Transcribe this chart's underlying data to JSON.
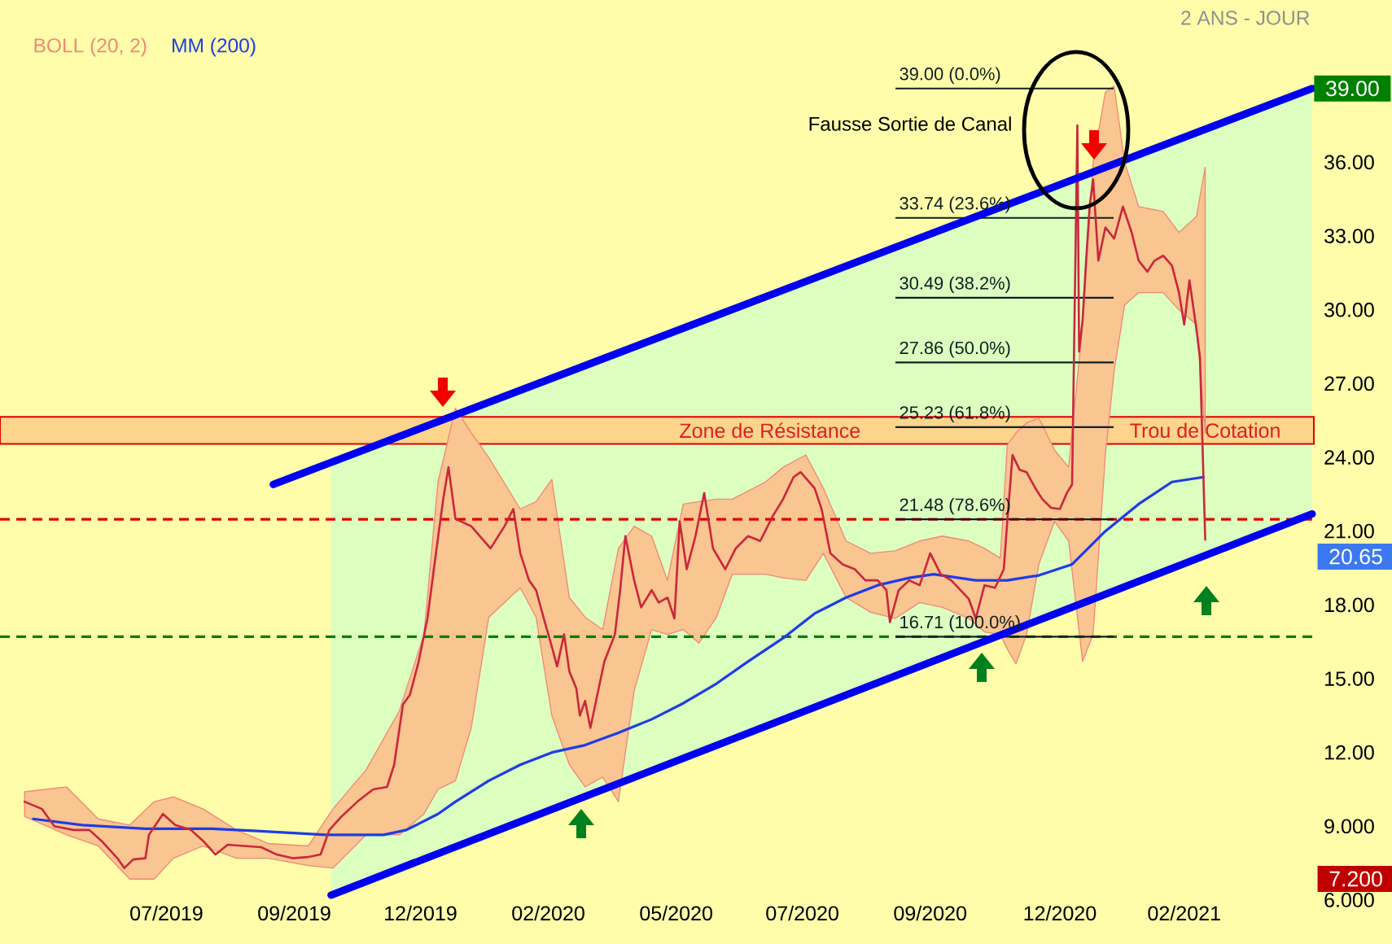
{
  "chart_data": {
    "type": "line",
    "subtitle": "2 ANS - JOUR",
    "xlim": [
      "2019-03-28",
      "2021-04-16"
    ],
    "ylim": [
      6,
      42.6
    ],
    "xticks": [
      {
        "value": "2019-07-01",
        "label": "07/2019"
      },
      {
        "value": "2019-09-12",
        "label": "09/2019"
      },
      {
        "value": "2019-11-23",
        "label": "12/2019"
      },
      {
        "value": "2020-02-04",
        "label": "02/2020"
      },
      {
        "value": "2020-04-17",
        "label": "05/2020"
      },
      {
        "value": "2020-06-28",
        "label": "07/2020"
      },
      {
        "value": "2020-09-09",
        "label": "09/2020"
      },
      {
        "value": "2020-11-22",
        "label": "12/2020"
      },
      {
        "value": "2021-02-01",
        "label": "02/2021"
      }
    ],
    "yticks": [
      {
        "value": 6,
        "label": "6.000"
      },
      {
        "value": 9,
        "label": "9.000"
      },
      {
        "value": 12,
        "label": "12.00"
      },
      {
        "value": 15,
        "label": "15.00"
      },
      {
        "value": 18,
        "label": "18.00"
      },
      {
        "value": 21,
        "label": "21.00"
      },
      {
        "value": 24,
        "label": "24.00"
      },
      {
        "value": 27,
        "label": "27.00"
      },
      {
        "value": 30,
        "label": "30.00"
      },
      {
        "value": 33,
        "label": "33.00"
      },
      {
        "value": 36,
        "label": "36.00"
      }
    ],
    "legend": "top left",
    "series": [
      {
        "name": "BOLL (20, 2)",
        "color": "#f08878",
        "values": [
          null,
          null,
          null,
          null,
          null,
          null,
          null,
          null,
          null,
          null,
          null,
          null,
          null,
          null,
          null,
          null,
          null,
          null,
          null,
          null,
          null,
          null,
          null,
          null,
          null,
          null,
          null,
          null,
          null,
          null,
          null,
          null,
          null,
          null,
          null,
          null,
          null,
          null,
          null,
          null,
          null,
          null,
          null,
          null,
          null,
          null,
          null,
          null,
          null,
          null,
          null,
          null,
          null,
          null,
          null,
          null,
          null,
          null,
          null,
          null
        ],
        "x": [
          "2019-04-11",
          "2019-05-05",
          "2019-05-23",
          "2019-06-10",
          "2019-06-24",
          "2019-07-05",
          "2019-07-22",
          "2019-08-10",
          "2019-08-28",
          "2019-09-20",
          "2019-10-04",
          "2019-10-23",
          "2019-11-11",
          "2019-11-25",
          "2019-12-03",
          "2019-12-13",
          "2019-12-22",
          "2020-01-01",
          "2020-01-19",
          "2020-01-28",
          "2020-02-06",
          "2020-02-16",
          "2020-02-25",
          "2020-03-06",
          "2020-03-15",
          "2020-03-24",
          "2020-04-03",
          "2020-04-12",
          "2020-04-21",
          "2020-04-30",
          "2020-05-10",
          "2020-05-19",
          "2020-06-07",
          "2020-06-17",
          "2020-06-30",
          "2020-07-10",
          "2020-07-23",
          "2020-08-06",
          "2020-08-20",
          "2020-09-03",
          "2020-09-16",
          "2020-10-01",
          "2020-10-10",
          "2020-10-19",
          "2020-10-23",
          "2020-10-28",
          "2020-11-03",
          "2020-11-10",
          "2020-11-19",
          "2020-11-27",
          "2020-12-05",
          "2020-12-11",
          "2020-12-18",
          "2020-12-23",
          "2020-12-29",
          "2021-01-06",
          "2021-01-20",
          "2021-01-29",
          "2021-02-08",
          "2021-02-13"
        ],
        "lower": [
          9.4,
          8.65,
          8.2,
          6.85,
          6.85,
          7.7,
          8.2,
          7.7,
          7.7,
          7.4,
          7.3,
          8.65,
          8.65,
          9.5,
          10.5,
          10.85,
          13.0,
          17.5,
          18.7,
          17.5,
          13.5,
          11.5,
          10.6,
          11.0,
          10.0,
          14.5,
          17.0,
          16.8,
          17.0,
          16.45,
          17.5,
          19.25,
          19.25,
          19.1,
          19.0,
          20.1,
          18.3,
          17.7,
          17.45,
          18.1,
          17.9,
          17.45,
          16.9,
          16.8,
          16.2,
          15.6,
          16.8,
          19.65,
          21.4,
          20.6,
          15.7,
          16.8,
          24.1,
          27.5,
          30.2,
          30.7,
          30.7,
          30.0,
          29.4,
          25.0
        ],
        "upper": [
          10.4,
          10.6,
          9.3,
          9.05,
          10.0,
          10.2,
          9.7,
          8.85,
          8.3,
          8.2,
          9.7,
          11.3,
          13.7,
          16.8,
          23.0,
          26.0,
          25.0,
          24.0,
          21.9,
          22.2,
          23.1,
          18.3,
          17.5,
          17.0,
          20.3,
          21.2,
          20.8,
          19.0,
          22.1,
          22.2,
          22.3,
          22.3,
          23.0,
          23.6,
          24.1,
          22.75,
          20.6,
          20.1,
          20.2,
          20.6,
          20.8,
          20.6,
          20.3,
          19.9,
          24.5,
          25.0,
          25.4,
          25.6,
          24.3,
          23.6,
          29.4,
          36.0,
          38.85,
          39.1,
          36.0,
          34.2,
          34.0,
          33.15,
          33.8,
          35.8
        ]
      },
      {
        "name": "MM (200)",
        "color": "#1e3ce6",
        "x": [
          "2019-04-16",
          "2019-05-14",
          "2019-06-19",
          "2019-07-27",
          "2019-08-24",
          "2019-09-30",
          "2019-11-02",
          "2019-11-15",
          "2019-12-03",
          "2019-12-13",
          "2020-01-01",
          "2020-01-19",
          "2020-02-06",
          "2020-02-25",
          "2020-03-15",
          "2020-04-03",
          "2020-04-21",
          "2020-05-10",
          "2020-05-28",
          "2020-06-17",
          "2020-07-05",
          "2020-07-23",
          "2020-08-10",
          "2020-08-28",
          "2020-09-11",
          "2020-10-05",
          "2020-10-23",
          "2020-11-10",
          "2020-11-29",
          "2020-12-18",
          "2021-01-06",
          "2021-01-25",
          "2021-02-12"
        ],
        "values": [
          9.3,
          9.05,
          8.9,
          8.9,
          8.8,
          8.65,
          8.65,
          8.85,
          9.5,
          10.0,
          10.85,
          11.5,
          12.0,
          12.3,
          12.8,
          13.35,
          14.0,
          14.8,
          15.7,
          16.65,
          17.65,
          18.3,
          18.8,
          19.1,
          19.25,
          19.0,
          19.0,
          19.2,
          19.65,
          21.0,
          22.1,
          23.0,
          23.2
        ]
      },
      {
        "color": "#c8283c",
        "x": [
          "2019-04-11",
          "2019-04-21",
          "2019-04-28",
          "2019-05-09",
          "2019-05-18",
          "2019-05-25",
          "2019-06-03",
          "2019-06-07",
          "2019-06-12",
          "2019-06-19",
          "2019-06-21",
          "2019-06-29",
          "2019-07-06",
          "2019-07-15",
          "2019-07-22",
          "2019-07-29",
          "2019-08-05",
          "2019-08-14",
          "2019-08-24",
          "2019-09-02",
          "2019-09-11",
          "2019-09-20",
          "2019-09-27",
          "2019-10-02",
          "2019-10-09",
          "2019-10-18",
          "2019-10-27",
          "2019-11-04",
          "2019-11-08",
          "2019-11-13",
          "2019-11-17",
          "2019-11-22",
          "2019-11-27",
          "2019-12-01",
          "2019-12-06",
          "2019-12-09",
          "2019-12-13",
          "2019-12-22",
          "2020-01-02",
          "2020-01-10",
          "2020-01-15",
          "2020-01-19",
          "2020-01-24",
          "2020-01-28",
          "2020-02-02",
          "2020-02-06",
          "2020-02-09",
          "2020-02-13",
          "2020-02-16",
          "2020-02-20",
          "2020-02-22",
          "2020-02-25",
          "2020-02-28",
          "2020-03-03",
          "2020-03-07",
          "2020-03-13",
          "2020-03-16",
          "2020-03-19",
          "2020-03-24",
          "2020-03-28",
          "2020-04-03",
          "2020-04-07",
          "2020-04-12",
          "2020-04-16",
          "2020-04-19",
          "2020-04-23",
          "2020-04-28",
          "2020-05-03",
          "2020-05-08",
          "2020-05-15",
          "2020-05-21",
          "2020-05-28",
          "2020-06-04",
          "2020-06-11",
          "2020-06-17",
          "2020-06-23",
          "2020-06-27",
          "2020-07-05",
          "2020-07-09",
          "2020-07-14",
          "2020-07-21",
          "2020-07-28",
          "2020-08-03",
          "2020-08-10",
          "2020-08-15",
          "2020-08-17",
          "2020-08-22",
          "2020-08-28",
          "2020-09-03",
          "2020-09-09",
          "2020-09-15",
          "2020-09-21",
          "2020-10-01",
          "2020-10-05",
          "2020-10-10",
          "2020-10-16",
          "2020-10-21",
          "2020-10-23",
          "2020-10-26",
          "2020-10-30",
          "2020-11-03",
          "2020-11-08",
          "2020-11-12",
          "2020-11-17",
          "2020-11-22",
          "2020-11-26",
          "2020-11-29",
          "2020-12-02",
          "2020-12-03",
          "2020-12-05",
          "2020-12-07",
          "2020-12-09",
          "2020-12-11",
          "2020-12-14",
          "2020-12-18",
          "2020-12-23",
          "2020-12-28",
          "2021-01-02",
          "2021-01-06",
          "2021-01-11",
          "2021-01-15",
          "2021-01-20",
          "2021-01-25",
          "2021-01-29",
          "2021-02-01",
          "2021-02-04",
          "2021-02-08",
          "2021-02-10",
          "2021-02-13"
        ],
        "values": [
          10.0,
          9.7,
          9.0,
          8.85,
          8.85,
          8.4,
          7.7,
          7.3,
          7.65,
          7.7,
          8.65,
          9.5,
          9.05,
          8.85,
          8.4,
          7.85,
          8.25,
          8.2,
          8.15,
          7.85,
          7.7,
          7.75,
          7.85,
          8.85,
          9.4,
          10.0,
          10.5,
          10.6,
          11.5,
          13.95,
          14.35,
          15.7,
          17.45,
          19.65,
          22.3,
          23.6,
          21.5,
          21.2,
          20.3,
          21.2,
          21.9,
          20.1,
          19.0,
          18.6,
          17.3,
          16.3,
          15.5,
          16.8,
          15.3,
          14.6,
          13.5,
          14.1,
          13.0,
          14.35,
          15.7,
          16.8,
          18.6,
          20.8,
          19.0,
          17.9,
          18.6,
          18.1,
          18.3,
          17.45,
          21.4,
          19.45,
          20.8,
          22.55,
          20.3,
          19.45,
          20.3,
          20.8,
          20.6,
          21.6,
          22.3,
          23.2,
          23.4,
          22.75,
          21.9,
          20.1,
          19.65,
          19.45,
          19.0,
          19.0,
          18.6,
          17.3,
          18.6,
          19.0,
          18.8,
          20.1,
          19.25,
          19.0,
          18.25,
          17.45,
          18.8,
          18.7,
          19.45,
          21.4,
          24.1,
          23.5,
          23.4,
          22.75,
          22.3,
          21.95,
          21.9,
          22.55,
          22.9,
          37.5,
          28.3,
          29.6,
          32.0,
          34.2,
          35.3,
          32.0,
          33.35,
          32.9,
          34.2,
          33.15,
          32.0,
          31.55,
          32.0,
          32.2,
          31.8,
          30.7,
          29.4,
          31.2,
          29.2,
          28.05,
          20.65
        ]
      },
      {
        "color": "#0000f0",
        "x": [
          "2019-08-31",
          "2021-04-15"
        ],
        "values": [
          22.9,
          39.0
        ]
      },
      {
        "color": "#0000f0",
        "x": [
          "2019-10-03",
          "2021-04-15"
        ],
        "values": [
          6.2,
          21.7
        ],
        "lower": [
          6.2,
          21.7
        ],
        "upper": [
          23.8,
          39.0
        ]
      }
    ],
    "ref_lines": [
      {
        "axis": "y",
        "value": 21.48,
        "color": "#e00000",
        "line_style": "dashed"
      },
      {
        "axis": "y",
        "value": 16.71,
        "color": "#008000",
        "line_style": "dashed"
      },
      {
        "axis": "y",
        "value": 39.0,
        "label": "39.00 (0.0%)",
        "color": "#102020"
      },
      {
        "axis": "y",
        "value": 33.74,
        "label": "33.74 (23.6%)",
        "color": "#102020"
      },
      {
        "axis": "y",
        "value": 30.49,
        "label": "30.49 (38.2%)",
        "color": "#102020"
      },
      {
        "axis": "y",
        "value": 27.86,
        "label": "27.86 (50.0%)",
        "color": "#102020"
      },
      {
        "axis": "y",
        "value": 25.23,
        "label": "25.23 (61.8%)",
        "color": "#102020"
      },
      {
        "axis": "y",
        "value": 21.48,
        "label": "21.48 (78.6%)",
        "color": "#102020"
      },
      {
        "axis": "y",
        "value": 16.71,
        "label": "16.71 (100.0%)",
        "color": "#102020"
      }
    ],
    "bands": [
      {
        "axis": "y",
        "from": 24.55,
        "to": 25.65,
        "label": "Zone de Résistance",
        "color": "#fcd48c"
      }
    ],
    "annotations": [
      "Fausse Sortie de Canal",
      {
        "text": "Trou de Cotation",
        "x": "2021-02-13",
        "y": 25.1
      },
      {
        "text": "39.00",
        "x": "2021-04-15",
        "y": 39.0
      },
      "20.65",
      "7.200"
    ]
  }
}
